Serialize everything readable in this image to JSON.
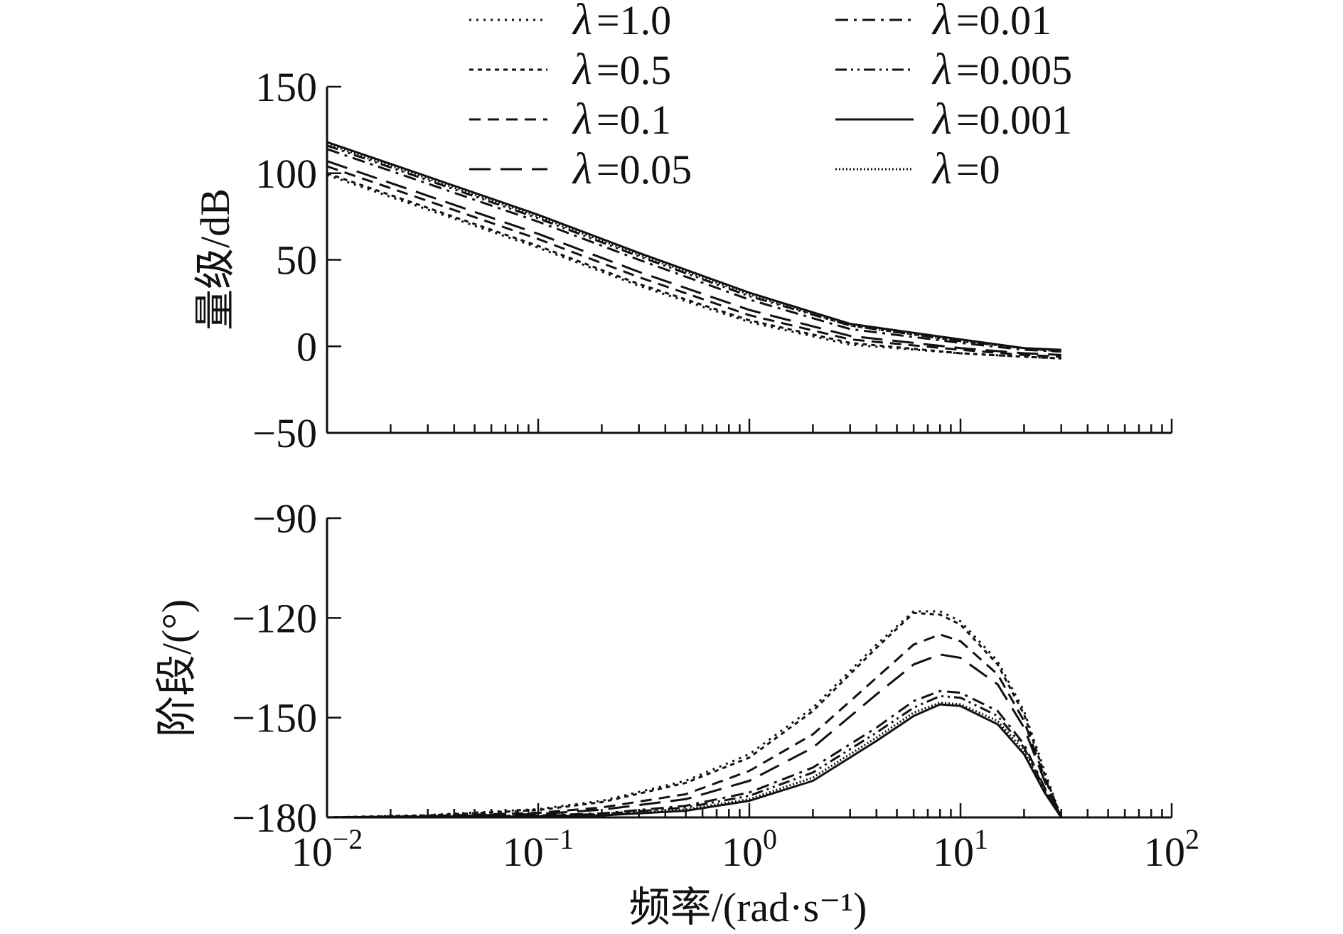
{
  "chart_data": [
    {
      "type": "line",
      "panel": "magnitude",
      "ylabel": "量级/dB",
      "xscale": "log",
      "xlim": [
        0.01,
        100
      ],
      "ylim": [
        -50,
        150
      ],
      "yticks": [
        "150",
        "100",
        "50",
        "0",
        "−50"
      ],
      "x": [
        0.01,
        0.03,
        0.1,
        0.3,
        1,
        3,
        10,
        20,
        30
      ],
      "series": [
        {
          "name": "λ=1.0",
          "dash": "dot",
          "values": [
            99,
            79,
            57,
            35,
            14,
            1,
            -4,
            -6,
            -7
          ]
        },
        {
          "name": "λ=0.5",
          "dash": "short-dash",
          "values": [
            100,
            80,
            58,
            36,
            15,
            2,
            -4,
            -6,
            -7
          ]
        },
        {
          "name": "λ=0.1",
          "dash": "dash",
          "values": [
            104,
            84,
            62,
            40,
            18,
            4,
            -2,
            -5,
            -6
          ]
        },
        {
          "name": "λ=0.05",
          "dash": "long-dash",
          "values": [
            107,
            87,
            65,
            43,
            21,
            6,
            -1,
            -4,
            -5
          ]
        },
        {
          "name": "λ=0.01",
          "dash": "dash-dot",
          "values": [
            114,
            94,
            72,
            50,
            27,
            10,
            2,
            -2,
            -3
          ]
        },
        {
          "name": "λ=0.005",
          "dash": "dash-dot-dot",
          "values": [
            116,
            96,
            74,
            52,
            29,
            12,
            3,
            -1,
            -3
          ]
        },
        {
          "name": "λ=0.001",
          "dash": "solid",
          "values": [
            118,
            98,
            76,
            54,
            31,
            13,
            4,
            -1,
            -2
          ]
        },
        {
          "name": "λ=0",
          "dash": "dense-dot",
          "values": [
            117,
            97,
            75,
            53,
            30,
            12,
            3,
            -1,
            -3
          ]
        }
      ]
    },
    {
      "type": "line",
      "panel": "phase",
      "ylabel": "阶段/(°)",
      "xlabel": "频率/(rad·s⁻¹)",
      "xscale": "log",
      "xlim": [
        0.01,
        100
      ],
      "ylim": [
        -180,
        -90
      ],
      "yticks": [
        "−90",
        "−120",
        "−150",
        "−180"
      ],
      "xticks": [
        {
          "base": "10",
          "exp": "−2"
        },
        {
          "base": "10",
          "exp": "−1"
        },
        {
          "base": "10",
          "exp": "0"
        },
        {
          "base": "10",
          "exp": "1"
        },
        {
          "base": "10",
          "exp": "2"
        }
      ],
      "x": [
        0.01,
        0.03,
        0.1,
        0.2,
        0.5,
        1,
        2,
        4,
        6,
        8,
        10,
        15,
        20,
        25,
        30
      ],
      "series": [
        {
          "name": "λ=1.0",
          "values": [
            -180,
            -179.3,
            -177.5,
            -175,
            -169,
            -161,
            -147,
            -128,
            -118,
            -118,
            -121,
            -133,
            -148,
            -166,
            -180
          ]
        },
        {
          "name": "λ=0.5",
          "values": [
            -180,
            -179.4,
            -177.8,
            -175.4,
            -169.6,
            -162,
            -148,
            -129,
            -118.5,
            -119,
            -122,
            -134,
            -149,
            -167,
            -180
          ]
        },
        {
          "name": "λ=0.1",
          "values": [
            -180,
            -179.6,
            -178.6,
            -177,
            -173,
            -166,
            -155,
            -138,
            -128,
            -125,
            -127,
            -137,
            -151,
            -168,
            -180
          ]
        },
        {
          "name": "λ=0.05",
          "values": [
            -180,
            -179.7,
            -179,
            -177.7,
            -174.5,
            -169,
            -159,
            -143,
            -134,
            -131,
            -132,
            -140,
            -153,
            -169,
            -180
          ]
        },
        {
          "name": "λ=0.01",
          "values": [
            -180,
            -179.8,
            -179.4,
            -178.8,
            -176.5,
            -172.5,
            -165,
            -153,
            -145,
            -142,
            -142.5,
            -148,
            -158,
            -171,
            -180
          ]
        },
        {
          "name": "λ=0.005",
          "values": [
            -180,
            -179.8,
            -179.5,
            -179,
            -177,
            -173.5,
            -166.5,
            -154.5,
            -147,
            -143.5,
            -144,
            -149.5,
            -159,
            -171.5,
            -180
          ]
        },
        {
          "name": "λ=0.001",
          "values": [
            -180,
            -179.9,
            -179.7,
            -179.4,
            -178,
            -175,
            -169,
            -157,
            -149.5,
            -146,
            -146.5,
            -152,
            -161,
            -172.5,
            -180
          ]
        },
        {
          "name": "λ=0",
          "values": [
            -180,
            -179.9,
            -179.6,
            -179.2,
            -177.6,
            -174.5,
            -168,
            -156,
            -148.5,
            -145.5,
            -146,
            -151,
            -160,
            -172,
            -180
          ]
        }
      ]
    }
  ],
  "legend": [
    {
      "lambda": "λ",
      "value": "=1.0",
      "style": "dot"
    },
    {
      "lambda": "λ",
      "value": "=0.5",
      "style": "short-dash"
    },
    {
      "lambda": "λ",
      "value": "=0.1",
      "style": "dash"
    },
    {
      "lambda": "λ",
      "value": "=0.05",
      "style": "long-dash"
    },
    {
      "lambda": "λ",
      "value": "=0.01",
      "style": "dash-dot"
    },
    {
      "lambda": "λ",
      "value": "=0.005",
      "style": "dash-dot-dot"
    },
    {
      "lambda": "λ",
      "value": "=0.001",
      "style": "solid"
    },
    {
      "lambda": "λ",
      "value": "=0",
      "style": "dense-dot"
    }
  ]
}
